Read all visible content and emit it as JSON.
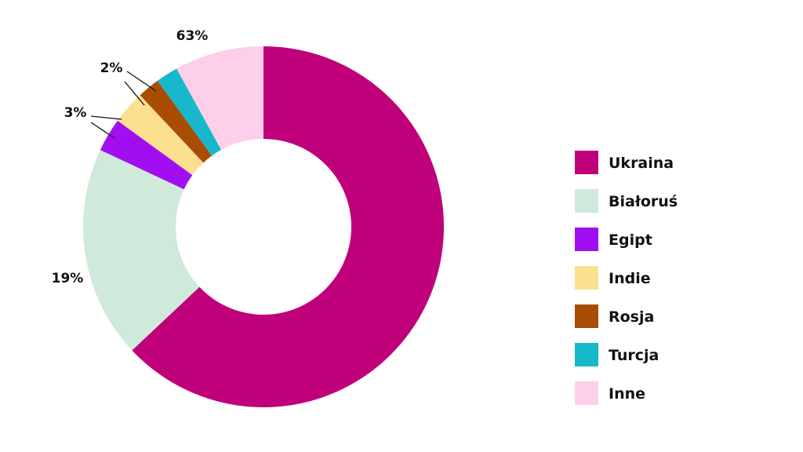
{
  "chart_data": {
    "type": "pie",
    "variant": "donut",
    "legend_position": "right",
    "slices": [
      {
        "label": "Ukraina",
        "value": 63,
        "color": "#c0007a"
      },
      {
        "label": "Białoruś",
        "value": 19,
        "color": "#cfe9da"
      },
      {
        "label": "Egipt",
        "value": 3,
        "color": "#a10ff0"
      },
      {
        "label": "Indie",
        "value": 3,
        "color": "#fde08f"
      },
      {
        "label": "Rosja",
        "value": 2,
        "color": "#a94d05"
      },
      {
        "label": "Turcja",
        "value": 2,
        "color": "#17b8cc"
      },
      {
        "label": "Inne",
        "value": 8,
        "color": "#fdcfe8"
      }
    ],
    "data_labels": {
      "ukraina": "63%",
      "bialorus": "19%",
      "egipt": "3%",
      "rosja": "2%"
    }
  }
}
